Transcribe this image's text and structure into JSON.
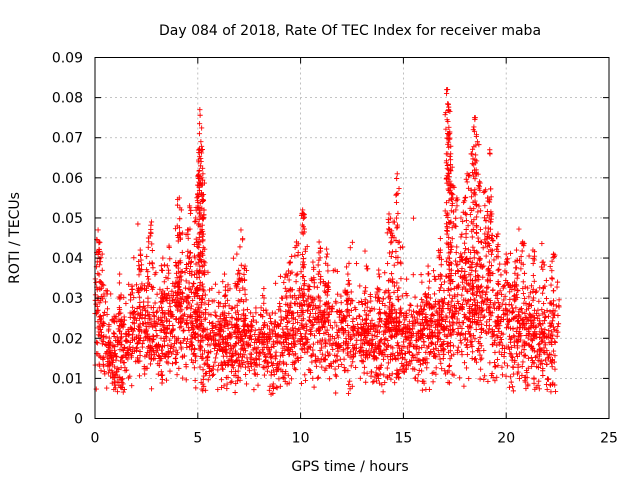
{
  "chart_data": {
    "type": "scatter",
    "title": "Day 084 of 2018, Rate Of TEC Index for receiver maba",
    "xlabel": "GPS time / hours",
    "ylabel": "ROTI / TECUs",
    "xlim": [
      0,
      25
    ],
    "ylim": [
      0,
      0.09
    ],
    "xticks": [
      0,
      5,
      10,
      15,
      20,
      25
    ],
    "yticks": [
      0,
      0.01,
      0.02,
      0.03,
      0.04,
      0.05,
      0.06,
      0.07,
      0.08,
      0.09
    ],
    "grid": true,
    "marker": "plus",
    "colors": {
      "series": "#ff0000",
      "grid": "#b0b0b0",
      "axis": "#000000"
    },
    "series": [
      {
        "name": "ROTI",
        "profile": [
          [
            0.0,
            0.022,
            0.006
          ],
          [
            0.5,
            0.019,
            0.006
          ],
          [
            1.0,
            0.016,
            0.005
          ],
          [
            1.5,
            0.017,
            0.005
          ],
          [
            2.0,
            0.022,
            0.006
          ],
          [
            2.5,
            0.024,
            0.006
          ],
          [
            3.0,
            0.021,
            0.005
          ],
          [
            3.5,
            0.022,
            0.006
          ],
          [
            4.0,
            0.025,
            0.007
          ],
          [
            4.5,
            0.024,
            0.007
          ],
          [
            5.0,
            0.022,
            0.006
          ],
          [
            5.5,
            0.019,
            0.006
          ],
          [
            6.0,
            0.019,
            0.005
          ],
          [
            6.5,
            0.019,
            0.006
          ],
          [
            7.0,
            0.019,
            0.006
          ],
          [
            7.5,
            0.018,
            0.005
          ],
          [
            8.0,
            0.019,
            0.005
          ],
          [
            8.5,
            0.017,
            0.005
          ],
          [
            9.0,
            0.018,
            0.006
          ],
          [
            9.5,
            0.022,
            0.006
          ],
          [
            10.0,
            0.023,
            0.006
          ],
          [
            10.5,
            0.022,
            0.006
          ],
          [
            11.0,
            0.022,
            0.006
          ],
          [
            11.5,
            0.019,
            0.005
          ],
          [
            12.0,
            0.02,
            0.005
          ],
          [
            12.5,
            0.02,
            0.006
          ],
          [
            13.0,
            0.02,
            0.005
          ],
          [
            13.5,
            0.019,
            0.005
          ],
          [
            14.0,
            0.021,
            0.006
          ],
          [
            14.5,
            0.021,
            0.006
          ],
          [
            15.0,
            0.02,
            0.005
          ],
          [
            15.5,
            0.021,
            0.006
          ],
          [
            16.0,
            0.021,
            0.006
          ],
          [
            16.5,
            0.022,
            0.006
          ],
          [
            17.0,
            0.024,
            0.007
          ],
          [
            17.5,
            0.025,
            0.007
          ],
          [
            18.0,
            0.026,
            0.008
          ],
          [
            18.5,
            0.027,
            0.008
          ],
          [
            19.0,
            0.026,
            0.008
          ],
          [
            19.5,
            0.024,
            0.007
          ],
          [
            20.0,
            0.024,
            0.007
          ],
          [
            20.5,
            0.023,
            0.007
          ],
          [
            21.0,
            0.022,
            0.007
          ],
          [
            21.5,
            0.021,
            0.006
          ],
          [
            22.0,
            0.02,
            0.006
          ],
          [
            22.4,
            0.019,
            0.006
          ]
        ],
        "spikes": [
          [
            0.15,
            0.047
          ],
          [
            0.2,
            0.044
          ],
          [
            0.35,
            0.041
          ],
          [
            1.2,
            0.036
          ],
          [
            1.8,
            0.033
          ],
          [
            2.2,
            0.042
          ],
          [
            2.6,
            0.045
          ],
          [
            2.75,
            0.049
          ],
          [
            3.3,
            0.04
          ],
          [
            3.6,
            0.043
          ],
          [
            4.0,
            0.048
          ],
          [
            4.1,
            0.055
          ],
          [
            4.2,
            0.052
          ],
          [
            4.5,
            0.047
          ],
          [
            4.6,
            0.053
          ],
          [
            4.9,
            0.05
          ],
          [
            5.0,
            0.056
          ],
          [
            5.05,
            0.064
          ],
          [
            5.08,
            0.071
          ],
          [
            5.1,
            0.077
          ],
          [
            5.15,
            0.069
          ],
          [
            5.2,
            0.06
          ],
          [
            5.25,
            0.061
          ],
          [
            5.3,
            0.052
          ],
          [
            6.3,
            0.036
          ],
          [
            6.9,
            0.041
          ],
          [
            7.1,
            0.047
          ],
          [
            7.3,
            0.038
          ],
          [
            9.3,
            0.036
          ],
          [
            9.5,
            0.039
          ],
          [
            9.8,
            0.044
          ],
          [
            10.1,
            0.052
          ],
          [
            10.15,
            0.051
          ],
          [
            10.6,
            0.039
          ],
          [
            10.9,
            0.044
          ],
          [
            11.3,
            0.041
          ],
          [
            12.3,
            0.036
          ],
          [
            13.2,
            0.038
          ],
          [
            13.8,
            0.037
          ],
          [
            14.3,
            0.051
          ],
          [
            14.5,
            0.049
          ],
          [
            14.7,
            0.061
          ],
          [
            14.8,
            0.044
          ],
          [
            16.2,
            0.038
          ],
          [
            16.8,
            0.042
          ],
          [
            17.1,
            0.081
          ],
          [
            17.15,
            0.082
          ],
          [
            17.2,
            0.077
          ],
          [
            17.25,
            0.071
          ],
          [
            17.3,
            0.066
          ],
          [
            17.4,
            0.058
          ],
          [
            17.6,
            0.055
          ],
          [
            17.8,
            0.05
          ],
          [
            18.0,
            0.055
          ],
          [
            18.1,
            0.061
          ],
          [
            18.3,
            0.066
          ],
          [
            18.4,
            0.072
          ],
          [
            18.5,
            0.075
          ],
          [
            18.6,
            0.069
          ],
          [
            18.7,
            0.059
          ],
          [
            19.0,
            0.057
          ],
          [
            19.1,
            0.055
          ],
          [
            19.2,
            0.067
          ],
          [
            19.3,
            0.051
          ],
          [
            19.6,
            0.046
          ],
          [
            20.0,
            0.041
          ],
          [
            20.5,
            0.042
          ],
          [
            20.8,
            0.044
          ],
          [
            21.3,
            0.042
          ],
          [
            21.8,
            0.039
          ],
          [
            22.3,
            0.041
          ],
          [
            22.5,
            0.034
          ]
        ],
        "lows": [
          [
            1.4,
            0.006
          ],
          [
            3.2,
            0.008
          ],
          [
            5.2,
            0.008
          ],
          [
            8.6,
            0.007
          ],
          [
            9.2,
            0.009
          ],
          [
            13.8,
            0.008
          ],
          [
            16.5,
            0.009
          ],
          [
            21.0,
            0.008
          ],
          [
            22.1,
            0.007
          ]
        ]
      }
    ]
  }
}
